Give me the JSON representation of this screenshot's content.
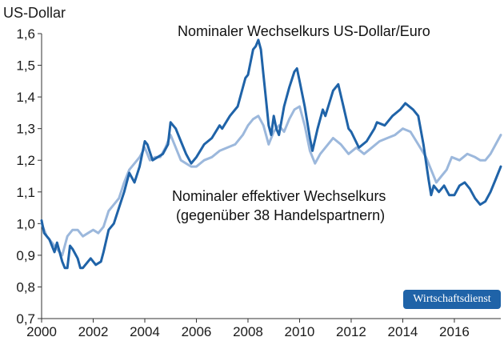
{
  "chart_data": {
    "type": "line",
    "ylabel": "US-Dollar",
    "ylim": [
      0.7,
      1.6
    ],
    "yticks": [
      "1,6",
      "1,5",
      "1,4",
      "1,3",
      "1,2",
      "1,1",
      "1,0",
      "0,9",
      "0,8",
      "0,7"
    ],
    "xlim": [
      2000,
      2017.8
    ],
    "xticks": [
      "2000",
      "2002",
      "2004",
      "2006",
      "2008",
      "2010",
      "2012",
      "2014",
      "2016"
    ],
    "grid": false,
    "annotations": [
      "Nominaler Wechselkurs US-Dollar/Euro",
      "Nominaler effektiver Wechselkurs",
      "(gegenüber 38 Handelspartnern)"
    ],
    "series": [
      {
        "name": "Nominaler Wechselkurs US-Dollar/Euro",
        "color": "#1f63a8",
        "x": [
          2000.0,
          2000.1,
          2000.3,
          2000.5,
          2000.6,
          2000.8,
          2000.9,
          2001.0,
          2001.1,
          2001.2,
          2001.4,
          2001.5,
          2001.6,
          2001.8,
          2001.9,
          2002.0,
          2002.1,
          2002.3,
          2002.4,
          2002.6,
          2002.8,
          2003.0,
          2003.2,
          2003.4,
          2003.6,
          2003.8,
          2004.0,
          2004.1,
          2004.3,
          2004.5,
          2004.7,
          2004.9,
          2005.0,
          2005.2,
          2005.4,
          2005.6,
          2005.8,
          2006.0,
          2006.3,
          2006.6,
          2006.9,
          2007.0,
          2007.3,
          2007.6,
          2007.9,
          2008.0,
          2008.2,
          2008.3,
          2008.4,
          2008.5,
          2008.6,
          2008.7,
          2008.8,
          2008.9,
          2009.0,
          2009.1,
          2009.2,
          2009.4,
          2009.6,
          2009.8,
          2009.9,
          2010.0,
          2010.2,
          2010.4,
          2010.5,
          2010.7,
          2010.9,
          2011.0,
          2011.3,
          2011.5,
          2011.7,
          2011.9,
          2012.0,
          2012.3,
          2012.6,
          2012.9,
          2013.0,
          2013.3,
          2013.6,
          2013.9,
          2014.1,
          2014.4,
          2014.6,
          2014.8,
          2015.0,
          2015.1,
          2015.2,
          2015.4,
          2015.6,
          2015.8,
          2016.0,
          2016.2,
          2016.4,
          2016.6,
          2016.8,
          2017.0,
          2017.2,
          2017.4,
          2017.6,
          2017.8
        ],
        "y": [
          1.01,
          0.97,
          0.95,
          0.91,
          0.94,
          0.88,
          0.86,
          0.86,
          0.93,
          0.92,
          0.89,
          0.86,
          0.86,
          0.88,
          0.89,
          0.88,
          0.87,
          0.88,
          0.91,
          0.98,
          1.0,
          1.05,
          1.1,
          1.16,
          1.13,
          1.18,
          1.26,
          1.25,
          1.2,
          1.21,
          1.22,
          1.25,
          1.32,
          1.3,
          1.26,
          1.22,
          1.19,
          1.21,
          1.25,
          1.27,
          1.31,
          1.3,
          1.34,
          1.37,
          1.46,
          1.47,
          1.55,
          1.56,
          1.58,
          1.55,
          1.47,
          1.39,
          1.31,
          1.28,
          1.34,
          1.3,
          1.28,
          1.37,
          1.43,
          1.48,
          1.49,
          1.45,
          1.37,
          1.27,
          1.23,
          1.3,
          1.36,
          1.34,
          1.42,
          1.44,
          1.37,
          1.3,
          1.29,
          1.24,
          1.26,
          1.3,
          1.32,
          1.31,
          1.34,
          1.36,
          1.38,
          1.36,
          1.34,
          1.25,
          1.14,
          1.09,
          1.12,
          1.1,
          1.12,
          1.09,
          1.09,
          1.12,
          1.13,
          1.11,
          1.08,
          1.06,
          1.07,
          1.1,
          1.14,
          1.18
        ]
      },
      {
        "name": "Nominaler effektiver Wechselkurs (gegenüber 38 Handelspartnern)",
        "color": "#9cb8dc",
        "x": [
          2000.0,
          2000.2,
          2000.4,
          2000.6,
          2000.8,
          2001.0,
          2001.2,
          2001.4,
          2001.6,
          2001.8,
          2002.0,
          2002.2,
          2002.4,
          2002.6,
          2002.8,
          2003.0,
          2003.2,
          2003.4,
          2003.6,
          2003.8,
          2004.0,
          2004.2,
          2004.4,
          2004.6,
          2004.8,
          2005.0,
          2005.2,
          2005.4,
          2005.6,
          2005.8,
          2006.0,
          2006.3,
          2006.6,
          2006.9,
          2007.2,
          2007.5,
          2007.8,
          2008.0,
          2008.2,
          2008.4,
          2008.6,
          2008.8,
          2009.0,
          2009.2,
          2009.4,
          2009.6,
          2009.8,
          2010.0,
          2010.2,
          2010.4,
          2010.6,
          2010.8,
          2011.0,
          2011.3,
          2011.6,
          2011.9,
          2012.2,
          2012.5,
          2012.8,
          2013.1,
          2013.4,
          2013.7,
          2014.0,
          2014.3,
          2014.6,
          2014.9,
          2015.1,
          2015.3,
          2015.5,
          2015.7,
          2015.9,
          2016.2,
          2016.5,
          2016.8,
          2017.0,
          2017.2,
          2017.4,
          2017.6,
          2017.8
        ],
        "y": [
          1.0,
          0.96,
          0.94,
          0.92,
          0.9,
          0.96,
          0.98,
          0.98,
          0.96,
          0.97,
          0.98,
          0.97,
          0.99,
          1.04,
          1.06,
          1.08,
          1.13,
          1.17,
          1.19,
          1.21,
          1.24,
          1.2,
          1.21,
          1.21,
          1.24,
          1.28,
          1.24,
          1.2,
          1.19,
          1.18,
          1.18,
          1.2,
          1.21,
          1.23,
          1.24,
          1.25,
          1.28,
          1.31,
          1.33,
          1.34,
          1.31,
          1.25,
          1.29,
          1.31,
          1.29,
          1.33,
          1.36,
          1.37,
          1.31,
          1.23,
          1.19,
          1.22,
          1.24,
          1.27,
          1.25,
          1.22,
          1.24,
          1.22,
          1.24,
          1.26,
          1.27,
          1.28,
          1.3,
          1.29,
          1.25,
          1.21,
          1.17,
          1.13,
          1.15,
          1.17,
          1.21,
          1.2,
          1.22,
          1.21,
          1.2,
          1.2,
          1.22,
          1.25,
          1.28
        ]
      }
    ]
  },
  "brand": "Wirtschaftsdienst"
}
